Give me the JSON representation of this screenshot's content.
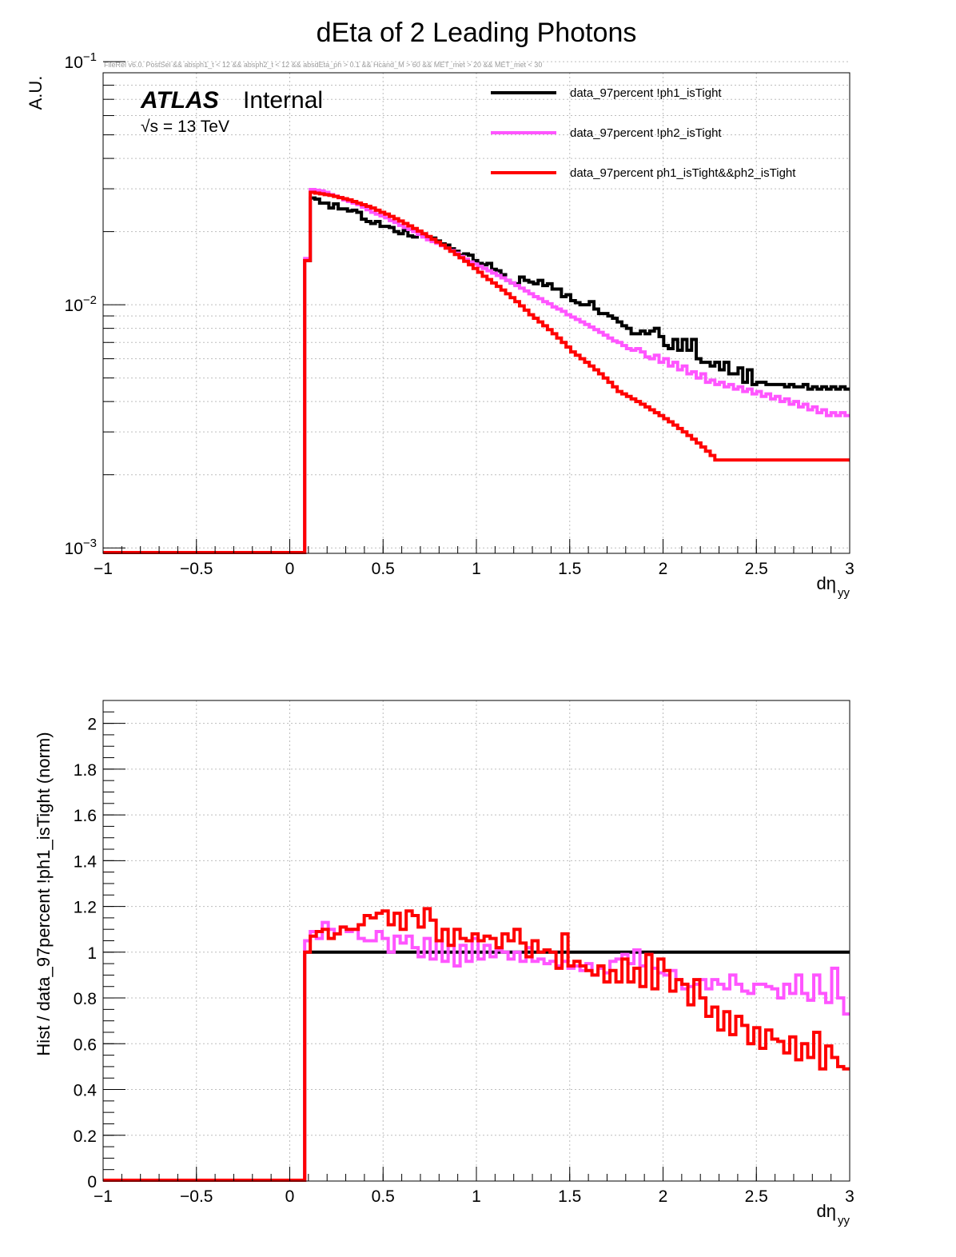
{
  "title": "dEta of 2 Leading Photons",
  "cut_string": "FileRel v6.0. PostSel &&  absph1_t < 12 && absph2_t < 12 && absdEta_ph > 0.1 && Hcand_M > 60 && MET_met > 20 && MET_met < 30",
  "atlas_label": "ATLAS",
  "atlas_status": "Internal",
  "energy_label": "√s = 13 TeV",
  "colors": {
    "black": "#000000",
    "magenta": "#ff55ff",
    "red": "#ff0000",
    "grid": "#bdbdbd"
  },
  "chart_data": [
    {
      "type": "line",
      "style": "step",
      "xlabel": "dη",
      "xlabel_sub": "yy",
      "ylabel": "A.U.",
      "xlim": [
        -1,
        3
      ],
      "ylim": [
        0.00095,
        0.09
      ],
      "log_y": true,
      "grid": true,
      "legend_position": "top-right",
      "x_ticks": [
        -1,
        -0.5,
        0,
        0.5,
        1,
        1.5,
        2,
        2.5,
        3
      ],
      "x_tick_labels": [
        "−1",
        "−0.5",
        "0",
        "0.5",
        "1",
        "1.5",
        "2",
        "2.5",
        "3"
      ],
      "y_ticks": [
        0.001,
        0.01,
        0.1
      ],
      "y_tick_labels": [
        {
          "base": "10",
          "exp": "−3"
        },
        {
          "base": "10",
          "exp": "−2"
        },
        {
          "base": "10",
          "exp": "−1"
        }
      ],
      "bin_edges_x": [
        0.08,
        0.11
      ],
      "bin_width": 0.025,
      "x_end": 3.0,
      "floor_value": 0.00095,
      "series": [
        {
          "name": "data_97percent  !ph1_isTight",
          "color": "#000000",
          "first_bin": 0.0152,
          "values": [
            0.0275,
            0.0272,
            0.0262,
            0.0262,
            0.025,
            0.026,
            0.0248,
            0.0248,
            0.0243,
            0.0245,
            0.024,
            0.0225,
            0.022,
            0.0216,
            0.022,
            0.021,
            0.021,
            0.0208,
            0.02,
            0.0196,
            0.0202,
            0.0192,
            0.019,
            0.0195,
            0.0193,
            0.019,
            0.0188,
            0.0183,
            0.0178,
            0.0176,
            0.017,
            0.0166,
            0.016,
            0.0162,
            0.016,
            0.0152,
            0.0148,
            0.0146,
            0.0148,
            0.014,
            0.0138,
            0.0133,
            0.0126,
            0.0123,
            0.0122,
            0.013,
            0.0126,
            0.0124,
            0.0122,
            0.0126,
            0.012,
            0.0122,
            0.0116,
            0.0116,
            0.0108,
            0.011,
            0.0104,
            0.0102,
            0.01,
            0.01,
            0.0103,
            0.0096,
            0.0092,
            0.0092,
            0.009,
            0.0088,
            0.0085,
            0.0082,
            0.008,
            0.0076,
            0.0076,
            0.0078,
            0.0076,
            0.0078,
            0.008,
            0.0074,
            0.0068,
            0.0066,
            0.0072,
            0.0065,
            0.0072,
            0.0065,
            0.0072,
            0.006,
            0.0058,
            0.0058,
            0.0056,
            0.0058,
            0.0054,
            0.0058,
            0.0052,
            0.0052,
            0.0055,
            0.0048,
            0.0054,
            0.0047,
            0.0048,
            0.0048,
            0.0047,
            0.0047,
            0.0047,
            0.0047,
            0.0046,
            0.0047,
            0.0046,
            0.0046,
            0.0047,
            0.0045,
            0.0046,
            0.0045,
            0.0046,
            0.0045,
            0.0046,
            0.0045,
            0.0046,
            0.0045
          ]
        },
        {
          "name": "data_97percent  !ph2_isTight",
          "color": "#ff55ff",
          "first_bin": 0.0155,
          "values": [
            0.0298,
            0.0296,
            0.0294,
            0.029,
            0.0284,
            0.028,
            0.0276,
            0.027,
            0.0266,
            0.0262,
            0.0258,
            0.0252,
            0.0246,
            0.024,
            0.0236,
            0.0232,
            0.0228,
            0.0222,
            0.0218,
            0.0212,
            0.0208,
            0.0204,
            0.02,
            0.0195,
            0.019,
            0.0185,
            0.0182,
            0.0179,
            0.0175,
            0.0171,
            0.0167,
            0.0163,
            0.0158,
            0.0154,
            0.015,
            0.0147,
            0.0144,
            0.0141,
            0.0138,
            0.0135,
            0.0132,
            0.0129,
            0.0126,
            0.0123,
            0.012,
            0.0117,
            0.0114,
            0.0111,
            0.0108,
            0.0106,
            0.0103,
            0.0101,
            0.0098,
            0.0096,
            0.0094,
            0.0091,
            0.0089,
            0.0087,
            0.0085,
            0.0083,
            0.0081,
            0.0079,
            0.0077,
            0.0075,
            0.0073,
            0.0071,
            0.007,
            0.0068,
            0.0066,
            0.0065,
            0.0066,
            0.0064,
            0.0061,
            0.006,
            0.0062,
            0.0058,
            0.006,
            0.0056,
            0.0058,
            0.0054,
            0.0056,
            0.0052,
            0.0053,
            0.005,
            0.0052,
            0.0048,
            0.0049,
            0.0047,
            0.0048,
            0.0046,
            0.0047,
            0.0045,
            0.0046,
            0.0044,
            0.0045,
            0.0043,
            0.0044,
            0.0042,
            0.0043,
            0.0041,
            0.0042,
            0.004,
            0.0041,
            0.0039,
            0.004,
            0.0038,
            0.0039,
            0.0037,
            0.0038,
            0.0036,
            0.0037,
            0.0035,
            0.0036,
            0.0035,
            0.0036,
            0.0035
          ]
        },
        {
          "name": "data_97percent  ph1_isTight&&ph2_isTight",
          "color": "#ff0000",
          "first_bin": 0.0152,
          "values": [
            0.029,
            0.0288,
            0.0286,
            0.0284,
            0.0282,
            0.0279,
            0.0276,
            0.0273,
            0.027,
            0.0266,
            0.0262,
            0.0258,
            0.0254,
            0.025,
            0.0245,
            0.024,
            0.0236,
            0.0231,
            0.0226,
            0.0221,
            0.0216,
            0.0211,
            0.0206,
            0.0201,
            0.0196,
            0.0191,
            0.0186,
            0.0181,
            0.0176,
            0.0171,
            0.0166,
            0.0161,
            0.0156,
            0.0151,
            0.0146,
            0.0141,
            0.0136,
            0.0131,
            0.0127,
            0.0123,
            0.0119,
            0.0115,
            0.0111,
            0.0107,
            0.0103,
            0.0099,
            0.0095,
            0.0091,
            0.0088,
            0.0085,
            0.0082,
            0.0079,
            0.0076,
            0.0073,
            0.007,
            0.0067,
            0.0064,
            0.0062,
            0.006,
            0.0058,
            0.0056,
            0.0054,
            0.0052,
            0.005,
            0.0048,
            0.0046,
            0.0044,
            0.0043,
            0.0042,
            0.0041,
            0.004,
            0.0039,
            0.0038,
            0.0037,
            0.0036,
            0.0035,
            0.0034,
            0.0033,
            0.0032,
            0.0031,
            0.003,
            0.0029,
            0.0028,
            0.0027,
            0.0026,
            0.0025,
            0.0024,
            0.0023,
            0.0023,
            0.0023,
            0.0023,
            0.0023,
            0.0023,
            0.0023,
            0.0023,
            0.0023,
            0.0023,
            0.0023,
            0.0023,
            0.0023,
            0.0023,
            0.0023,
            0.0023,
            0.0023,
            0.0023,
            0.0023,
            0.0023,
            0.0023,
            0.0023,
            0.0023,
            0.0023,
            0.0023,
            0.0023,
            0.0023,
            0.0023,
            0.0023
          ]
        }
      ]
    },
    {
      "type": "line",
      "style": "step",
      "xlabel": "dη",
      "xlabel_sub": "yy",
      "ylabel": "Hist / data_97percent  !ph1_isTight (norm)",
      "xlim": [
        -1,
        3
      ],
      "ylim": [
        0,
        2.1
      ],
      "log_y": false,
      "grid": true,
      "x_ticks": [
        -1,
        -0.5,
        0,
        0.5,
        1,
        1.5,
        2,
        2.5,
        3
      ],
      "x_tick_labels": [
        "−1",
        "−0.5",
        "0",
        "0.5",
        "1",
        "1.5",
        "2",
        "2.5",
        "3"
      ],
      "y_ticks": [
        0,
        0.2,
        0.4,
        0.6,
        0.8,
        1,
        1.2,
        1.4,
        1.6,
        1.8,
        2
      ],
      "y_tick_labels": [
        "0",
        "0.2",
        "0.4",
        "0.6",
        "0.8",
        "1",
        "1.2",
        "1.4",
        "1.6",
        "1.8",
        "2"
      ],
      "bin_edges_x": [
        0.08,
        0.11
      ],
      "bin_width": 0.025,
      "x_end": 3.0,
      "floor_value": 0,
      "series": [
        {
          "name": "data_97percent  !ph1_isTight",
          "color": "#000000",
          "first_bin": 1.0,
          "values": [
            1.0
          ]
        },
        {
          "name": "data_97percent  !ph2_isTight",
          "color": "#ff55ff",
          "first_bin": 1.05,
          "values": [
            1.09,
            1.06,
            1.13,
            1.1,
            1.08,
            1.11,
            1.09,
            1.1,
            1.06,
            1.05,
            1.05,
            1.09,
            1.06,
            1.0,
            1.07,
            1.04,
            1.07,
            1.02,
            0.98,
            1.06,
            0.97,
            1.05,
            0.96,
            1.03,
            0.94,
            1.03,
            0.96,
            1.06,
            0.97,
            1.03,
            0.98,
            1.01,
            1.0,
            0.97,
            1.0,
            0.96,
            1.02,
            0.96,
            0.97,
            0.95,
            0.96,
            0.94,
            0.96,
            0.93,
            0.94,
            0.92,
            0.95,
            0.9,
            0.93,
            0.91,
            0.96,
            0.97,
            0.99,
            0.95,
            1.01,
            0.94,
            0.99,
            0.93,
            0.91,
            0.9,
            0.92,
            0.88,
            0.84,
            0.85,
            0.86,
            0.88,
            0.84,
            0.88,
            0.86,
            0.84,
            0.9,
            0.86,
            0.83,
            0.82,
            0.86,
            0.86,
            0.85,
            0.84,
            0.8,
            0.86,
            0.82,
            0.9,
            0.82,
            0.79,
            0.9,
            0.82,
            0.78,
            0.93,
            0.8,
            0.73
          ]
        },
        {
          "name": "data_97percent  ph1_isTight&&ph2_isTight",
          "color": "#ff0000",
          "first_bin": 1.0,
          "values": [
            1.07,
            1.09,
            1.1,
            1.06,
            1.08,
            1.11,
            1.1,
            1.1,
            1.12,
            1.16,
            1.15,
            1.17,
            1.18,
            1.12,
            1.17,
            1.1,
            1.18,
            1.16,
            1.11,
            1.19,
            1.14,
            1.05,
            1.1,
            1.03,
            1.1,
            1.06,
            1.05,
            1.08,
            1.05,
            1.07,
            1.06,
            1.02,
            1.08,
            1.05,
            1.1,
            1.04,
            0.98,
            1.05,
            1.0,
            1.01,
            1.0,
            0.93,
            1.08,
            0.94,
            0.96,
            0.94,
            0.92,
            0.9,
            0.94,
            0.87,
            0.92,
            0.87,
            0.97,
            0.87,
            0.93,
            0.85,
            0.99,
            0.84,
            0.97,
            0.92,
            0.83,
            0.88,
            0.86,
            0.77,
            0.88,
            0.8,
            0.72,
            0.76,
            0.66,
            0.74,
            0.64,
            0.72,
            0.68,
            0.6,
            0.67,
            0.58,
            0.66,
            0.62,
            0.61,
            0.56,
            0.63,
            0.53,
            0.6,
            0.54,
            0.65,
            0.49,
            0.59,
            0.54,
            0.5,
            0.49
          ]
        }
      ]
    }
  ]
}
